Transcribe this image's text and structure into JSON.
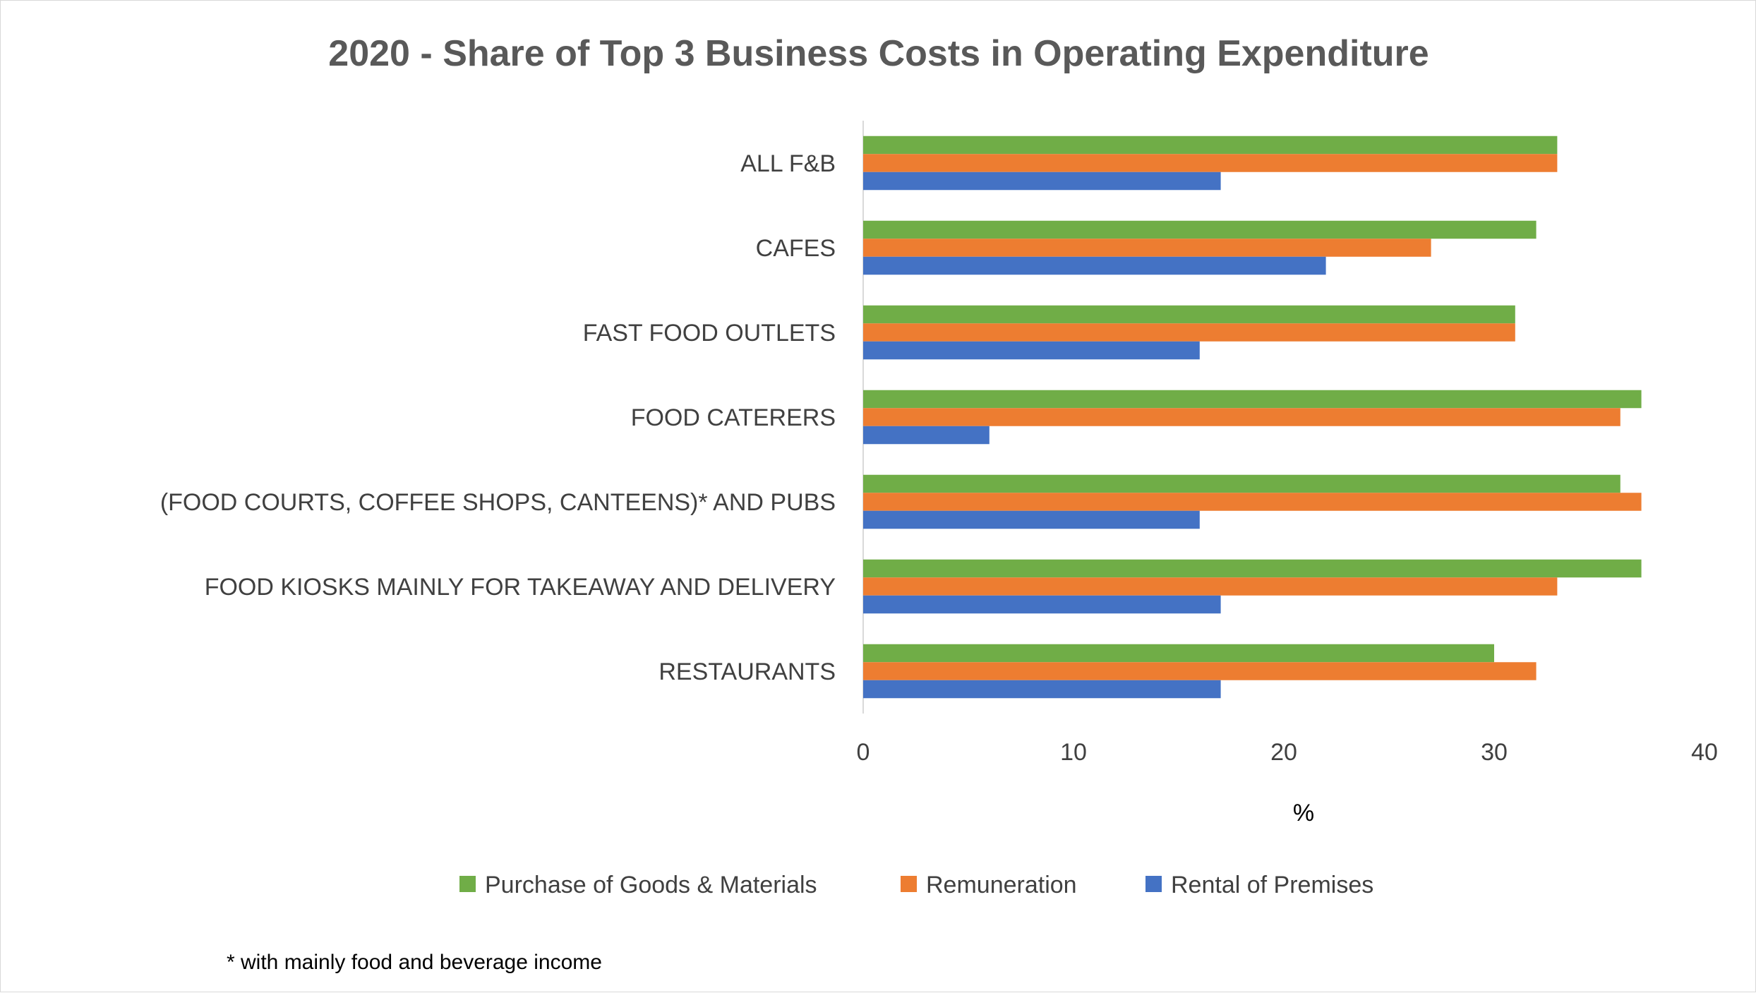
{
  "chart_data": {
    "type": "bar",
    "orientation": "horizontal",
    "title": "2020 - Share of Top 3 Business Costs in Operating Expenditure",
    "categories": [
      "ALL F&B",
      "CAFES",
      "FAST FOOD OUTLETS",
      "FOOD CATERERS",
      "(FOOD COURTS, COFFEE SHOPS, CANTEENS)* AND PUBS",
      "FOOD KIOSKS MAINLY FOR TAKEAWAY AND DELIVERY",
      "RESTAURANTS"
    ],
    "series": [
      {
        "name": "Purchase of Goods & Materials",
        "color": "#70ad47",
        "values": [
          33,
          32,
          31,
          37,
          36,
          37,
          30
        ]
      },
      {
        "name": "Remuneration",
        "color": "#ed7d31",
        "values": [
          33,
          27,
          31,
          36,
          37,
          33,
          32
        ]
      },
      {
        "name": "Rental of Premises",
        "color": "#4472c4",
        "values": [
          17,
          22,
          16,
          6,
          16,
          17,
          17
        ]
      }
    ],
    "xlabel": "%",
    "ylabel": "",
    "xlim": [
      0,
      40
    ],
    "xticks": [
      "0",
      "10",
      "20",
      "30",
      "40"
    ],
    "grid": false,
    "legend_position": "bottom"
  },
  "footnote": "* with mainly food and beverage income"
}
